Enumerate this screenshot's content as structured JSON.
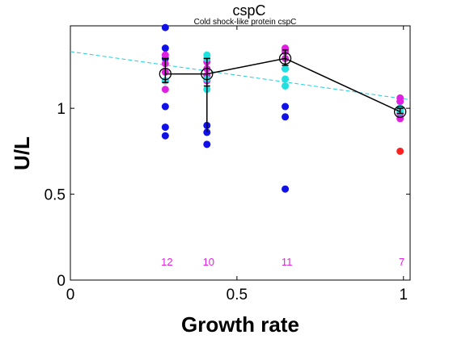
{
  "chart_data": {
    "type": "scatter",
    "title": "cspC",
    "subtitle": "Cold shock-like protein cspC",
    "xlabel": "Growth rate",
    "ylabel": "U/L",
    "xlim": [
      0,
      1.02
    ],
    "ylim": [
      0,
      1.48
    ],
    "xticks": [
      0,
      0.5,
      1
    ],
    "xtick_labels": [
      "0",
      "0.5",
      "1"
    ],
    "yticks": [
      0,
      0.5,
      1
    ],
    "ytick_labels": [
      "0",
      "0.5",
      "1"
    ],
    "grid": false,
    "colors": {
      "blue": "#1010e8",
      "magenta": "#e020e0",
      "cyan": "#20e0e0",
      "red": "#ff2020",
      "fit": "#20d0e0",
      "mean": "#000000"
    },
    "series": [
      {
        "color": "blue",
        "points": [
          [
            0.285,
            1.47
          ],
          [
            0.285,
            1.35
          ],
          [
            0.285,
            1.29
          ],
          [
            0.285,
            1.01
          ],
          [
            0.285,
            0.89
          ],
          [
            0.285,
            0.84
          ],
          [
            0.41,
            0.9
          ],
          [
            0.41,
            0.86
          ],
          [
            0.41,
            0.79
          ],
          [
            0.645,
            1.01
          ],
          [
            0.645,
            0.95
          ],
          [
            0.645,
            0.53
          ]
        ]
      },
      {
        "color": "magenta",
        "points": [
          [
            0.285,
            1.31
          ],
          [
            0.285,
            1.26
          ],
          [
            0.285,
            1.21
          ],
          [
            0.285,
            1.16
          ],
          [
            0.285,
            1.11
          ],
          [
            0.41,
            1.27
          ],
          [
            0.41,
            1.23
          ],
          [
            0.41,
            1.19
          ],
          [
            0.41,
            1.16
          ],
          [
            0.645,
            1.35
          ],
          [
            0.645,
            1.33
          ],
          [
            0.645,
            1.29
          ],
          [
            0.645,
            1.23
          ],
          [
            0.99,
            1.06
          ],
          [
            0.99,
            1.04
          ],
          [
            0.99,
            1.0
          ],
          [
            0.99,
            0.97
          ],
          [
            0.99,
            0.94
          ]
        ]
      },
      {
        "color": "cyan",
        "points": [
          [
            0.285,
            1.16
          ],
          [
            0.41,
            1.31
          ],
          [
            0.41,
            1.29
          ],
          [
            0.41,
            1.17
          ],
          [
            0.41,
            1.11
          ],
          [
            0.645,
            1.23
          ],
          [
            0.645,
            1.17
          ],
          [
            0.645,
            1.13
          ],
          [
            0.99,
            1.0
          ],
          [
            0.99,
            0.98
          ]
        ]
      },
      {
        "color": "red",
        "points": [
          [
            0.99,
            0.75
          ]
        ]
      }
    ],
    "mean_line": {
      "x": [
        0.285,
        0.41,
        0.645,
        0.99
      ],
      "y": [
        1.2,
        1.2,
        1.29,
        0.98
      ],
      "err_low": [
        1.15,
        1.13,
        1.25,
        0.97
      ],
      "err_high": [
        1.29,
        1.29,
        1.34,
        1.0
      ]
    },
    "fit_line": {
      "x": [
        0,
        1.02
      ],
      "y": [
        1.33,
        1.05
      ],
      "style": "dashed"
    },
    "counts": [
      {
        "x": 0.285,
        "label": "12"
      },
      {
        "x": 0.41,
        "label": "10"
      },
      {
        "x": 0.645,
        "label": "11"
      },
      {
        "x": 0.99,
        "label": "7"
      }
    ]
  }
}
